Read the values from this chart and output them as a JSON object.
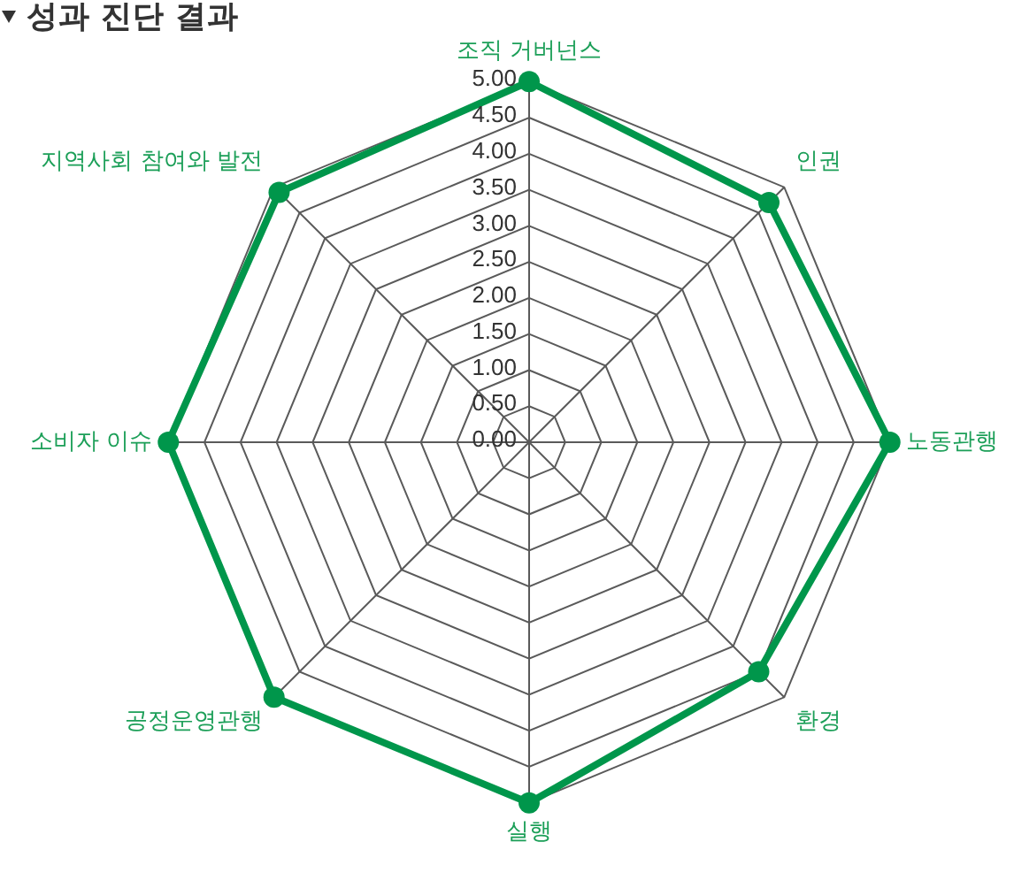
{
  "chart_data": {
    "type": "radar",
    "title": "성과 진단 결과",
    "categories": [
      "조직 거버넌스",
      "인권",
      "노동관행",
      "환경",
      "실행",
      "공정운영관행",
      "소비자 이슈",
      "지역사회 참여와 발전"
    ],
    "series": [
      {
        "color": "#00964b",
        "values": [
          5,
          4.7,
          5,
          4.5,
          5,
          5,
          5,
          4.9
        ]
      }
    ],
    "ylim": [
      0,
      5
    ],
    "yticks": [
      {
        "value": 0,
        "label": "0.00"
      },
      {
        "value": 0.5,
        "label": "0.50"
      },
      {
        "value": 1,
        "label": "1.00"
      },
      {
        "value": 1.5,
        "label": "1.50"
      },
      {
        "value": 2,
        "label": "2.00"
      },
      {
        "value": 2.5,
        "label": "2.50"
      },
      {
        "value": 3,
        "label": "3.00"
      },
      {
        "value": 3.5,
        "label": "3.50"
      },
      {
        "value": 4,
        "label": "4.00"
      },
      {
        "value": 4.5,
        "label": "4.50"
      },
      {
        "value": 5,
        "label": "5.00"
      }
    ],
    "grid": true,
    "marker": "circle",
    "legend": false
  }
}
